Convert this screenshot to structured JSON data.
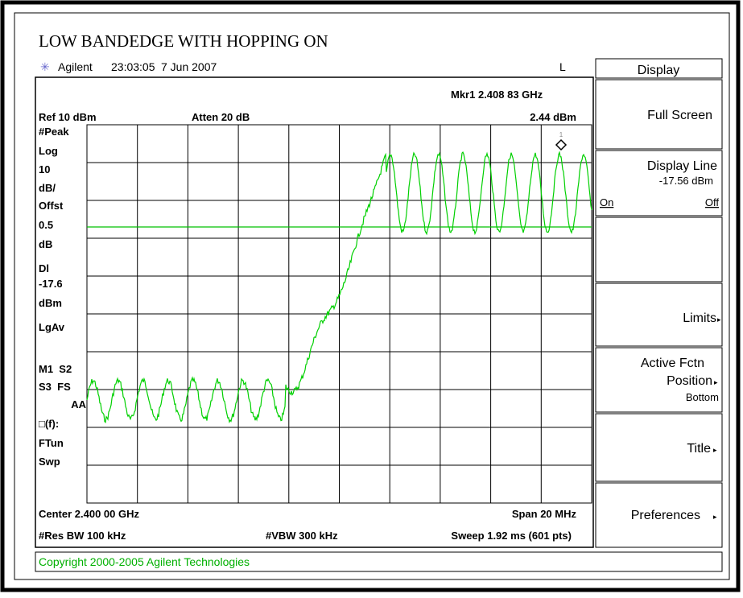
{
  "title": "LOW BANDEDGE WITH HOPPING ON",
  "header": {
    "brand": "Agilent",
    "time": "23:03:05",
    "date": "7 Jun 2007",
    "flag": "L"
  },
  "screen": {
    "marker": "Mkr1 2.408 83 GHz",
    "ref": "Ref 10 dBm",
    "atten": "Atten 20 dB",
    "marker_level": "2.44 dBm",
    "marker_id": "1",
    "left_labels": [
      "#Peak",
      "Log",
      "10",
      "dB/",
      "Offst",
      "0.5",
      "dB",
      "Dl",
      "-17.6",
      "dBm",
      "LgAv",
      "M1  S2",
      "S3  FS",
      "AA",
      "□(f):",
      "FTun",
      "Swp"
    ],
    "center": "Center 2.400 00 GHz",
    "span": "Span 20 MHz",
    "res_bw": "#Res BW 100 kHz",
    "vbw": "#VBW 300 kHz",
    "sweep": "Sweep 1.92 ms (601 pts)"
  },
  "softkeys": {
    "menu": "Display",
    "full_screen": "Full Screen",
    "display_line": "Display Line",
    "display_line_value": "-17.56 dBm",
    "on": "On",
    "off": "Off",
    "limits": "Limits",
    "active_fctn": "Active Fctn",
    "position": "Position",
    "bottom": "Bottom",
    "title_key": "Title",
    "preferences": "Preferences"
  },
  "status": "Copyright 2000-2005 Agilent Technologies"
}
